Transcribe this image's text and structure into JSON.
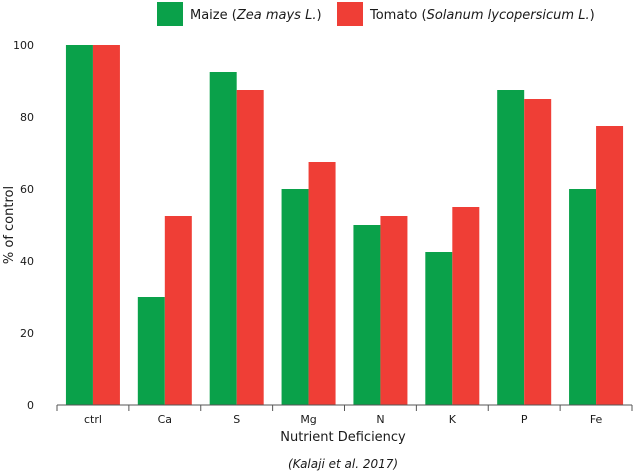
{
  "chart_data": {
    "type": "bar",
    "categories": [
      "ctrl",
      "Ca",
      "S",
      "Mg",
      "N",
      "K",
      "P",
      "Fe"
    ],
    "series": [
      {
        "name": "Maize",
        "name_sci": "Zea mays L.",
        "color": "#0aa14a",
        "values": [
          100,
          30,
          92.5,
          60,
          50,
          42.5,
          87.5,
          60
        ]
      },
      {
        "name": "Tomato",
        "name_sci": "Solanum lycopersicum L.",
        "color": "#ef3e36",
        "values": [
          100,
          52.5,
          87.5,
          67.5,
          52.5,
          55,
          85,
          77.5
        ]
      }
    ],
    "xlabel": "Nutrient Deficiency",
    "ylabel": "% of control",
    "ylim": [
      0,
      100
    ],
    "yticks": [
      0,
      20,
      40,
      60,
      80,
      100
    ],
    "grid": false,
    "legend": "top",
    "caption": "(Kalaji et al. 2017)"
  }
}
